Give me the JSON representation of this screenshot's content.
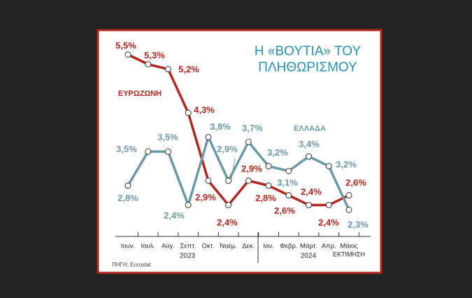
{
  "chart_data": {
    "type": "line",
    "title": [
      "Η «ΒΟΥΤΙΑ» ΤΟΥ",
      "ΠΛΗΘΩΡΙΣΜΟΥ"
    ],
    "categories": [
      "Ιουν.",
      "Ιουλ.",
      "Αύγ.",
      "Σεπτ.",
      "Οκτ.",
      "Νοέμ.",
      "Δεκ.",
      "Ιαν.",
      "Φεβρ.",
      "Μάρτ.",
      "Απρ.",
      "Μάιος"
    ],
    "category_note": "ΕΚΤΙΜΗΣΗ",
    "years": [
      "2023",
      "2024"
    ],
    "source": "ΠΗΓΗ: Eurostat",
    "series": [
      {
        "name": "ΕΥΡΩΖΩΝΗ",
        "color": "#b3261e",
        "values": [
          5.5,
          5.3,
          5.2,
          4.3,
          2.9,
          2.4,
          2.9,
          2.8,
          2.6,
          2.4,
          2.4,
          2.6
        ],
        "value_labels": [
          "5,5%",
          "5,3%",
          "5,2%",
          "4,3%",
          "2,9%",
          "2,4%",
          "2,9%",
          "2,8%",
          "2,6%",
          "2,4%",
          "2,4%",
          "2,6%"
        ]
      },
      {
        "name": "ΕΛΛΑΔΑ",
        "color": "#6b98a6",
        "values": [
          2.8,
          3.5,
          3.5,
          2.4,
          3.8,
          2.9,
          3.7,
          3.2,
          3.1,
          3.4,
          3.2,
          2.3
        ],
        "value_labels": [
          "2,8%",
          "3,5%",
          "3,5%",
          "2,4%",
          "3,8%",
          "2,9%",
          "3,7%",
          "3,2%",
          "3,1%",
          "3,4%",
          "3,2%",
          "2,3%"
        ]
      }
    ]
  }
}
